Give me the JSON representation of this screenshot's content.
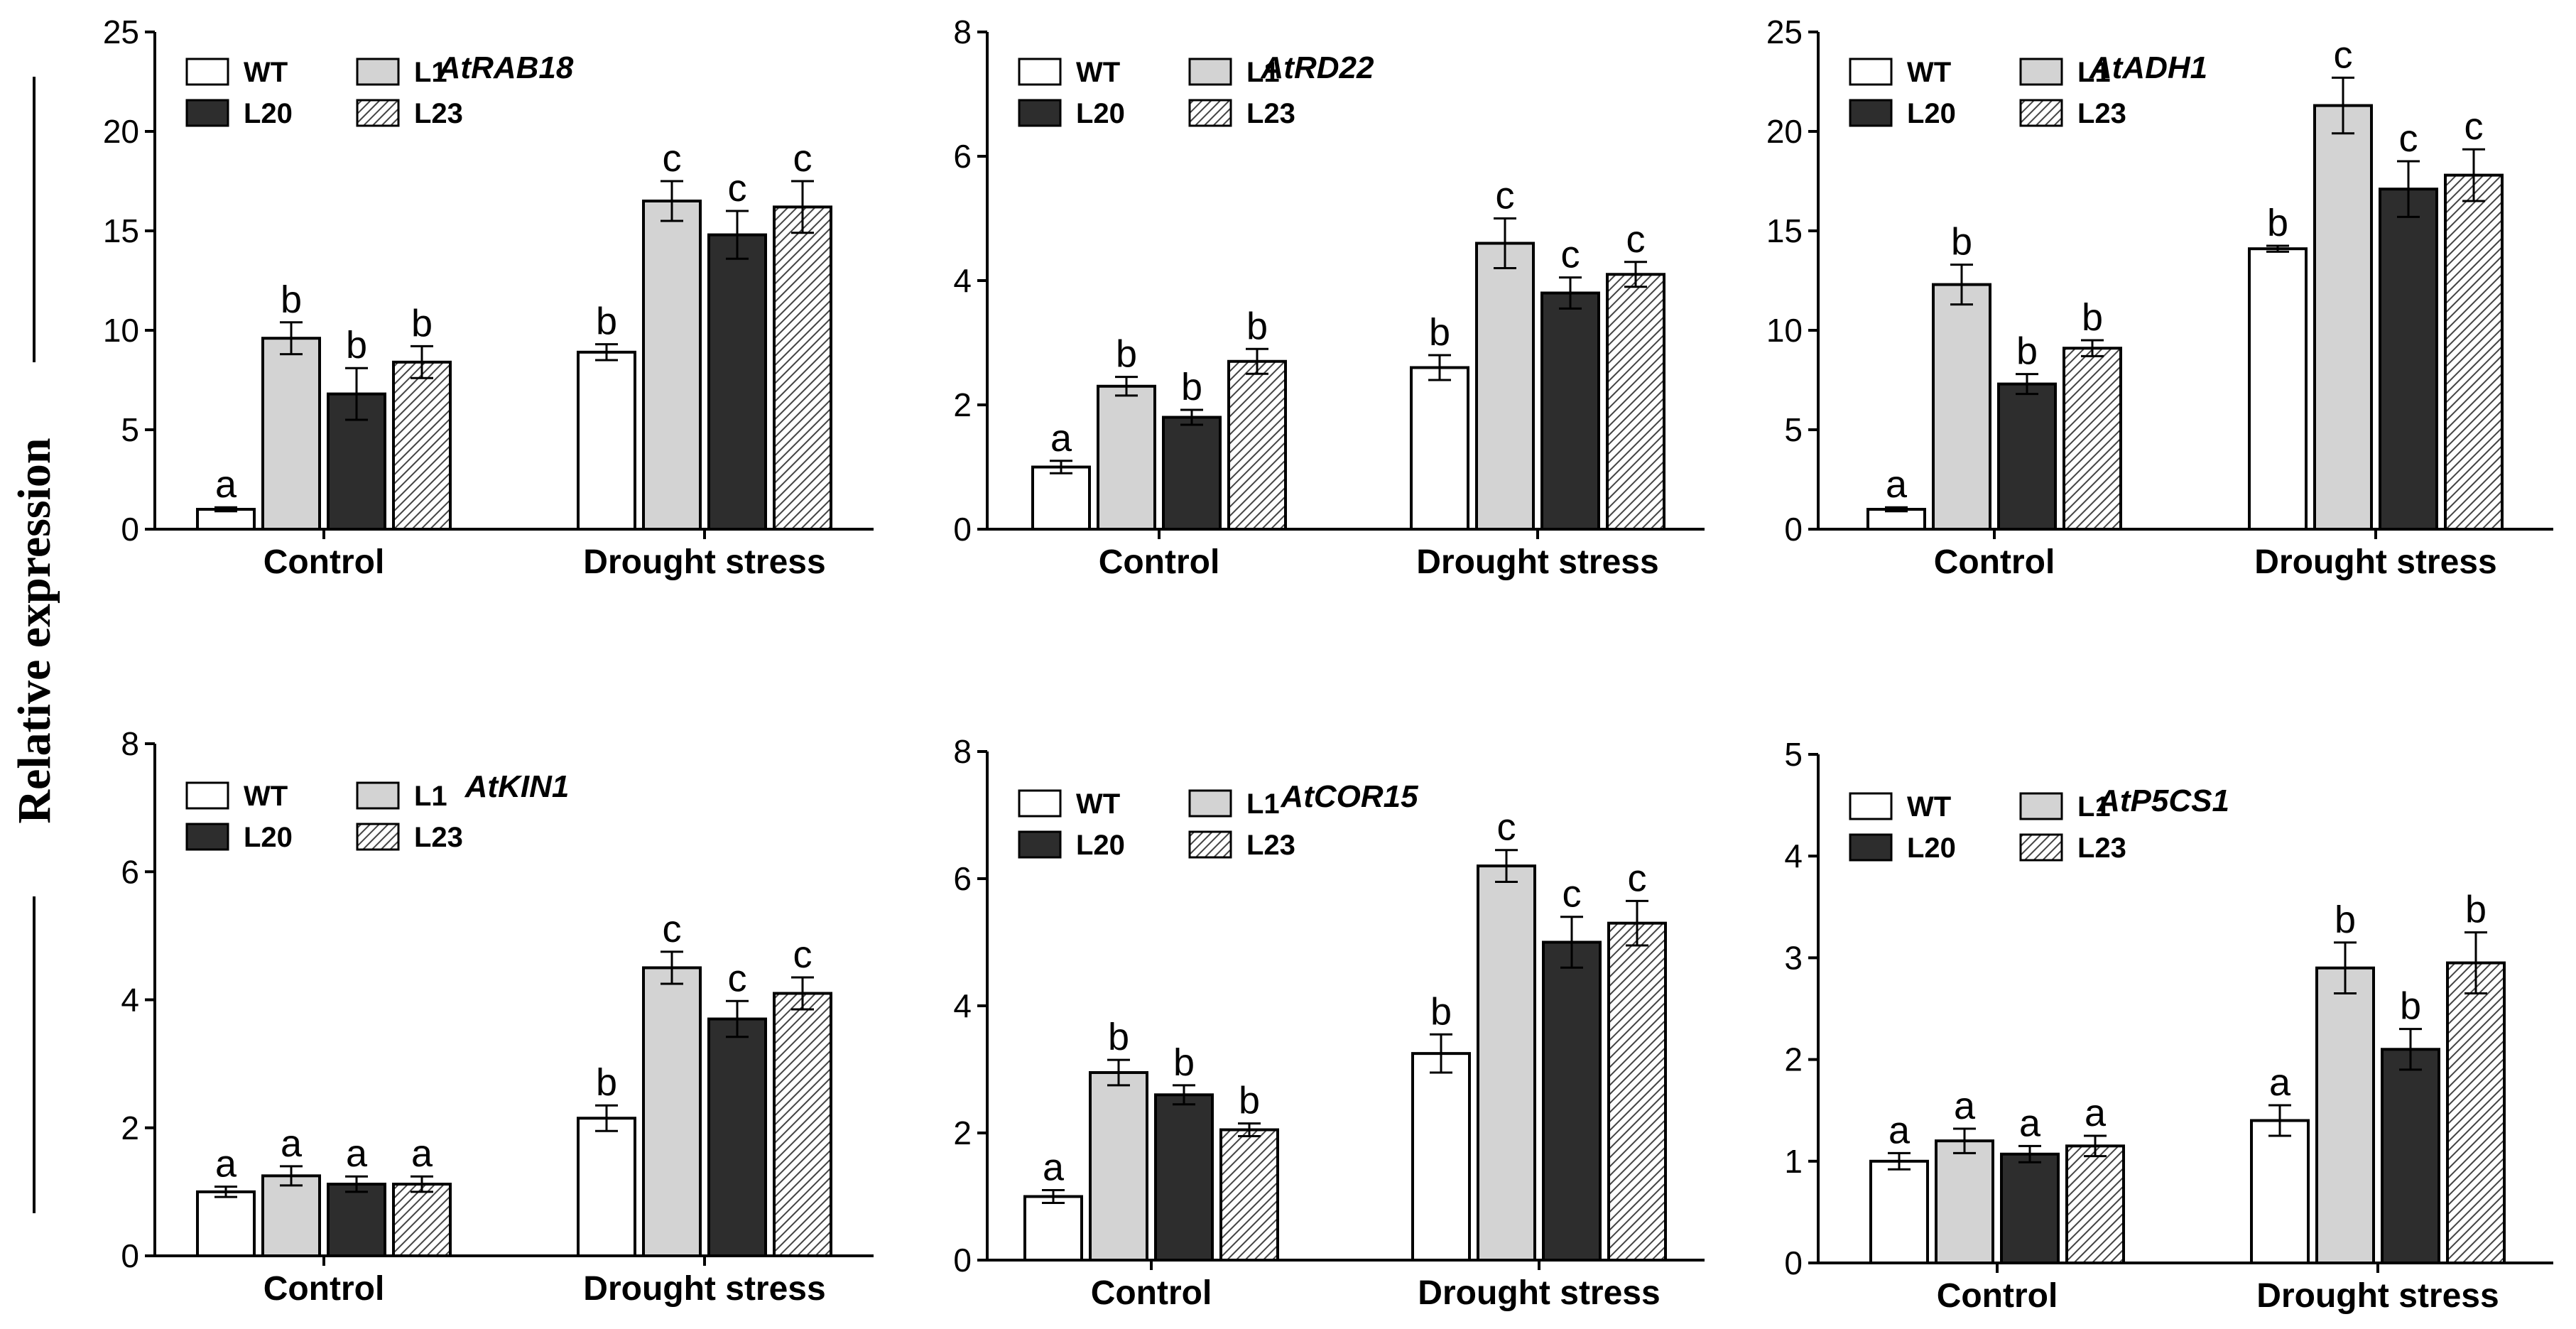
{
  "y_axis_label": "Relative expression",
  "colors": {
    "WT": "#ffffff",
    "L1": "#d3d3d3",
    "L20": "#2d2d2d",
    "L23": "hatch"
  },
  "chart_data": [
    {
      "type": "bar",
      "title": "AtRAB18",
      "categories": [
        "Control",
        "Drought stress"
      ],
      "ylim": [
        0,
        25
      ],
      "yticks": [
        0,
        5,
        10,
        15,
        20,
        25
      ],
      "legend": [
        "WT",
        "L1",
        "L20",
        "L23"
      ],
      "series": [
        {
          "name": "WT",
          "values": [
            1.0,
            8.9
          ],
          "errors": [
            0.1,
            0.4
          ],
          "letters": [
            "a",
            "b"
          ]
        },
        {
          "name": "L1",
          "values": [
            9.6,
            16.5
          ],
          "errors": [
            0.8,
            1.0
          ],
          "letters": [
            "b",
            "c"
          ]
        },
        {
          "name": "L20",
          "values": [
            6.8,
            14.8
          ],
          "errors": [
            1.3,
            1.2
          ],
          "letters": [
            "b",
            "c"
          ]
        },
        {
          "name": "L23",
          "values": [
            8.4,
            16.2
          ],
          "errors": [
            0.8,
            1.3
          ],
          "letters": [
            "b",
            "c"
          ]
        }
      ]
    },
    {
      "type": "bar",
      "title": "AtRD22",
      "categories": [
        "Control",
        "Drought stress"
      ],
      "ylim": [
        0,
        8
      ],
      "yticks": [
        0,
        2,
        4,
        6,
        8
      ],
      "legend": [
        "WT",
        "L1",
        "L20",
        "L23"
      ],
      "series": [
        {
          "name": "WT",
          "values": [
            1.0,
            2.6
          ],
          "errors": [
            0.1,
            0.2
          ],
          "letters": [
            "a",
            "b"
          ]
        },
        {
          "name": "L1",
          "values": [
            2.3,
            4.6
          ],
          "errors": [
            0.15,
            0.4
          ],
          "letters": [
            "b",
            "c"
          ]
        },
        {
          "name": "L20",
          "values": [
            1.8,
            3.8
          ],
          "errors": [
            0.12,
            0.25
          ],
          "letters": [
            "b",
            "c"
          ]
        },
        {
          "name": "L23",
          "values": [
            2.7,
            4.1
          ],
          "errors": [
            0.2,
            0.2
          ],
          "letters": [
            "b",
            "c"
          ]
        }
      ]
    },
    {
      "type": "bar",
      "title": "AtADH1",
      "categories": [
        "Control",
        "Drought stress"
      ],
      "ylim": [
        0,
        25
      ],
      "yticks": [
        0,
        5,
        10,
        15,
        20,
        25
      ],
      "legend": [
        "WT",
        "L1",
        "L20",
        "L23"
      ],
      "series": [
        {
          "name": "WT",
          "values": [
            1.0,
            14.1
          ],
          "errors": [
            0.1,
            0.15
          ],
          "letters": [
            "a",
            "b"
          ]
        },
        {
          "name": "L1",
          "values": [
            12.3,
            21.3
          ],
          "errors": [
            1.0,
            1.4
          ],
          "letters": [
            "b",
            "c"
          ]
        },
        {
          "name": "L20",
          "values": [
            7.3,
            17.1
          ],
          "errors": [
            0.5,
            1.4
          ],
          "letters": [
            "b",
            "c"
          ]
        },
        {
          "name": "L23",
          "values": [
            9.1,
            17.8
          ],
          "errors": [
            0.4,
            1.3
          ],
          "letters": [
            "b",
            "c"
          ]
        }
      ]
    },
    {
      "type": "bar",
      "title": "AtKIN1",
      "categories": [
        "Control",
        "Drought stress"
      ],
      "ylim": [
        0,
        8
      ],
      "yticks": [
        0,
        2,
        4,
        6,
        8
      ],
      "legend": [
        "WT",
        "L1",
        "L20",
        "L23"
      ],
      "series": [
        {
          "name": "WT",
          "values": [
            1.0,
            2.15
          ],
          "errors": [
            0.08,
            0.2
          ],
          "letters": [
            "a",
            "b"
          ]
        },
        {
          "name": "L1",
          "values": [
            1.25,
            4.5
          ],
          "errors": [
            0.15,
            0.25
          ],
          "letters": [
            "a",
            "c"
          ]
        },
        {
          "name": "L20",
          "values": [
            1.12,
            3.7
          ],
          "errors": [
            0.12,
            0.28
          ],
          "letters": [
            "a",
            "c"
          ]
        },
        {
          "name": "L23",
          "values": [
            1.12,
            4.1
          ],
          "errors": [
            0.12,
            0.25
          ],
          "letters": [
            "a",
            "c"
          ]
        }
      ]
    },
    {
      "type": "bar",
      "title": "AtCOR15",
      "categories": [
        "Control",
        "Drought stress"
      ],
      "ylim": [
        0,
        8
      ],
      "yticks": [
        0,
        2,
        4,
        6,
        8
      ],
      "legend": [
        "WT",
        "L1",
        "L20",
        "L23"
      ],
      "series": [
        {
          "name": "WT",
          "values": [
            1.0,
            3.25
          ],
          "errors": [
            0.1,
            0.3
          ],
          "letters": [
            "a",
            "b"
          ]
        },
        {
          "name": "L1",
          "values": [
            2.95,
            6.2
          ],
          "errors": [
            0.2,
            0.25
          ],
          "letters": [
            "b",
            "c"
          ]
        },
        {
          "name": "L20",
          "values": [
            2.6,
            5.0
          ],
          "errors": [
            0.15,
            0.4
          ],
          "letters": [
            "b",
            "c"
          ]
        },
        {
          "name": "L23",
          "values": [
            2.05,
            5.3
          ],
          "errors": [
            0.1,
            0.35
          ],
          "letters": [
            "b",
            "c"
          ]
        }
      ]
    },
    {
      "type": "bar",
      "title": "AtP5CS1",
      "categories": [
        "Control",
        "Drought stress"
      ],
      "ylim": [
        0,
        5
      ],
      "yticks": [
        0,
        1,
        2,
        3,
        4,
        5
      ],
      "legend": [
        "WT",
        "L1",
        "L20",
        "L23"
      ],
      "series": [
        {
          "name": "WT",
          "values": [
            1.0,
            1.4
          ],
          "errors": [
            0.08,
            0.15
          ],
          "letters": [
            "a",
            "a"
          ]
        },
        {
          "name": "L1",
          "values": [
            1.2,
            2.9
          ],
          "errors": [
            0.12,
            0.25
          ],
          "letters": [
            "a",
            "b"
          ]
        },
        {
          "name": "L20",
          "values": [
            1.07,
            2.1
          ],
          "errors": [
            0.08,
            0.2
          ],
          "letters": [
            "a",
            "b"
          ]
        },
        {
          "name": "L23",
          "values": [
            1.15,
            2.95
          ],
          "errors": [
            0.1,
            0.3
          ],
          "letters": [
            "a",
            "b"
          ]
        }
      ]
    }
  ]
}
